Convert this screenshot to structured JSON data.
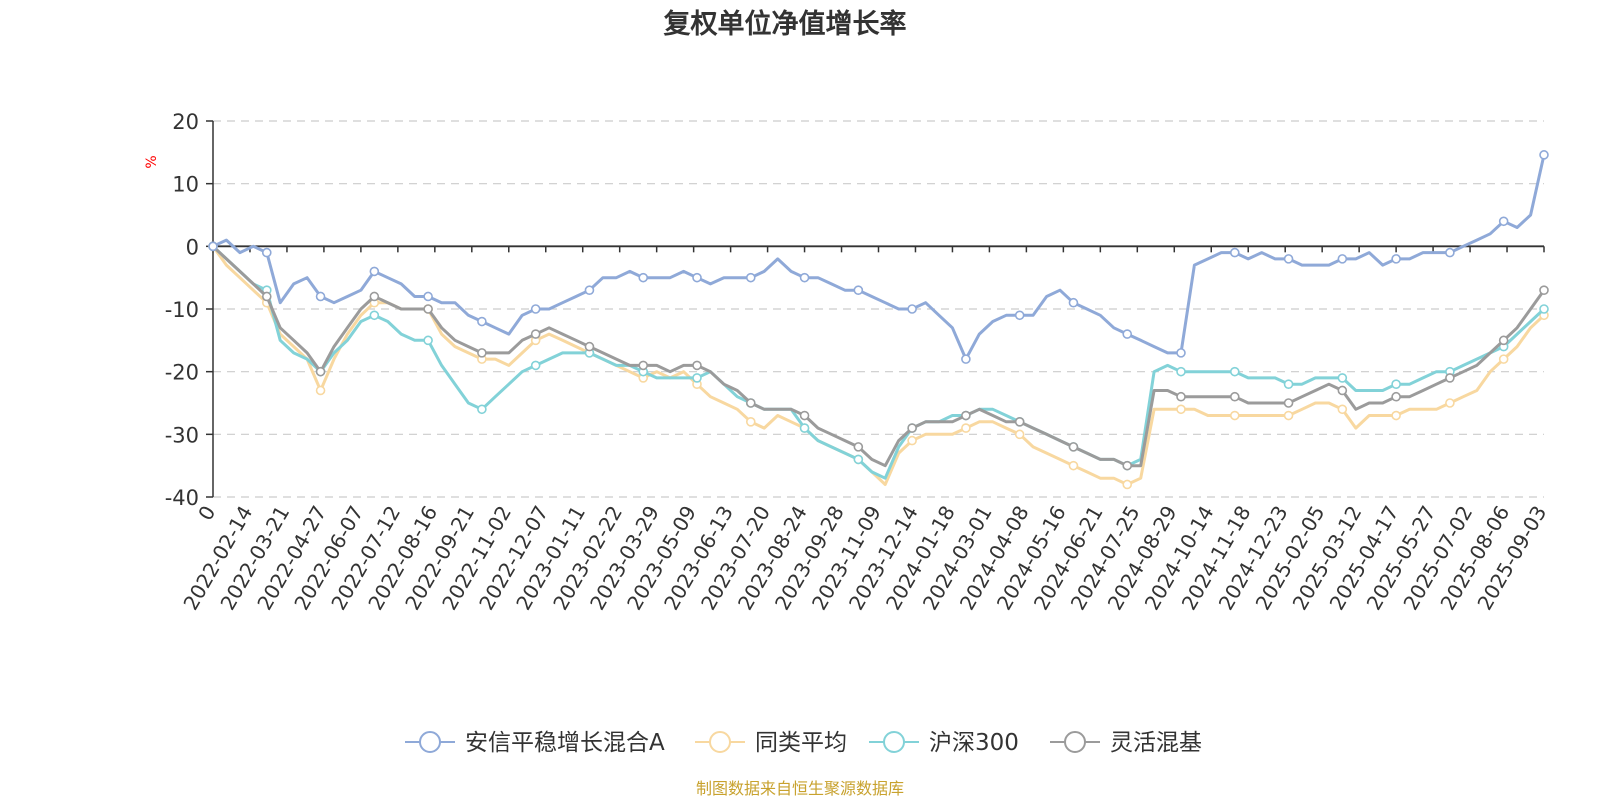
{
  "chart_data": {
    "type": "line",
    "title": "复权单位净值增长率",
    "ylabel": "%",
    "source": "制图数据来自恒生聚源数据库",
    "x_ticks": [
      "0",
      "2022-02-14",
      "2022-03-21",
      "2022-04-27",
      "2022-06-07",
      "2022-07-12",
      "2022-08-16",
      "2022-09-21",
      "2022-11-02",
      "2022-12-07",
      "2023-01-11",
      "2023-02-22",
      "2023-03-29",
      "2023-05-09",
      "2023-06-13",
      "2023-07-20",
      "2023-08-24",
      "2023-09-28",
      "2023-11-09",
      "2023-12-14",
      "2024-01-18",
      "2024-03-01",
      "2024-04-08",
      "2024-05-16",
      "2024-06-21",
      "2024-07-25",
      "2024-08-29",
      "2024-10-14",
      "2024-11-18",
      "2024-12-23",
      "2025-02-05",
      "2025-03-12",
      "2025-04-17",
      "2025-05-27",
      "2025-07-02",
      "2025-08-06",
      "2025-09-03"
    ],
    "ylim": [
      -40,
      20
    ],
    "y_ticks": [
      -40,
      -30,
      -20,
      -10,
      0,
      10,
      20
    ],
    "grid": true,
    "legend_position": "bottom",
    "series": [
      {
        "name": "安信平稳增长混合A",
        "color": "#8fa9d8",
        "values": [
          0,
          1,
          -1,
          0,
          -1,
          -9,
          -6,
          -5,
          -8,
          -9,
          -8,
          -7,
          -4,
          -5,
          -6,
          -8,
          -8,
          -9,
          -9,
          -11,
          -12,
          -13,
          -14,
          -11,
          -10,
          -10,
          -9,
          -8,
          -7,
          -5,
          -5,
          -4,
          -5,
          -5,
          -5,
          -4,
          -5,
          -6,
          -5,
          -5,
          -5,
          -4,
          -2,
          -4,
          -5,
          -5,
          -6,
          -7,
          -7,
          -8,
          -9,
          -10,
          -10,
          -9,
          -11,
          -13,
          -18,
          -14,
          -12,
          -11,
          -11,
          -11,
          -8,
          -7,
          -9,
          -10,
          -11,
          -13,
          -14,
          -15,
          -16,
          -17,
          -17,
          -3,
          -2,
          -1,
          -1,
          -2,
          -1,
          -2,
          -2,
          -3,
          -3,
          -3,
          -2,
          -2,
          -1,
          -3,
          -2,
          -2,
          -1,
          -1,
          -1,
          0,
          1,
          2,
          4,
          3,
          5,
          14.6
        ]
      },
      {
        "name": "同类平均",
        "color": "#f8d8a0",
        "values": [
          0,
          -3,
          -5,
          -7,
          -9,
          -14,
          -16,
          -18,
          -23,
          -18,
          -14,
          -11,
          -9,
          -9,
          -10,
          -10,
          -10,
          -14,
          -16,
          -17,
          -18,
          -18,
          -19,
          -17,
          -15,
          -14,
          -15,
          -16,
          -17,
          -18,
          -19,
          -20,
          -21,
          -20,
          -21,
          -20,
          -22,
          -24,
          -25,
          -26,
          -28,
          -29,
          -27,
          -28,
          -29,
          -31,
          -32,
          -33,
          -34,
          -36,
          -38,
          -33,
          -31,
          -30,
          -30,
          -30,
          -29,
          -28,
          -28,
          -29,
          -30,
          -32,
          -33,
          -34,
          -35,
          -36,
          -37,
          -37,
          -38,
          -37,
          -26,
          -26,
          -26,
          -26,
          -27,
          -27,
          -27,
          -27,
          -27,
          -27,
          -27,
          -26,
          -25,
          -25,
          -26,
          -29,
          -27,
          -27,
          -27,
          -26,
          -26,
          -26,
          -25,
          -24,
          -23,
          -20,
          -18,
          -16,
          -13,
          -11
        ]
      },
      {
        "name": "沪深300",
        "color": "#82d2d8",
        "values": [
          0,
          -2,
          -4,
          -6,
          -7,
          -15,
          -17,
          -18,
          -20,
          -17,
          -15,
          -12,
          -11,
          -12,
          -14,
          -15,
          -15,
          -19,
          -22,
          -25,
          -26,
          -24,
          -22,
          -20,
          -19,
          -18,
          -17,
          -17,
          -17,
          -18,
          -19,
          -19,
          -20,
          -21,
          -21,
          -21,
          -21,
          -20,
          -22,
          -24,
          -25,
          -26,
          -26,
          -26,
          -29,
          -31,
          -32,
          -33,
          -34,
          -36,
          -37,
          -32,
          -29,
          -28,
          -28,
          -27,
          -27,
          -26,
          -26,
          -27,
          -28,
          -29,
          -30,
          -31,
          -32,
          -33,
          -34,
          -34,
          -35,
          -34,
          -20,
          -19,
          -20,
          -20,
          -20,
          -20,
          -20,
          -21,
          -21,
          -21,
          -22,
          -22,
          -21,
          -21,
          -21,
          -23,
          -23,
          -23,
          -22,
          -22,
          -21,
          -20,
          -20,
          -19,
          -18,
          -17,
          -16,
          -14,
          -12,
          -10
        ]
      },
      {
        "name": "灵活混基",
        "color": "#9b9b9b",
        "values": [
          0,
          -2,
          -4,
          -6,
          -8,
          -13,
          -15,
          -17,
          -20,
          -16,
          -13,
          -10,
          -8,
          -9,
          -10,
          -10,
          -10,
          -13,
          -15,
          -16,
          -17,
          -17,
          -17,
          -15,
          -14,
          -13,
          -14,
          -15,
          -16,
          -17,
          -18,
          -19,
          -19,
          -19,
          -20,
          -19,
          -19,
          -20,
          -22,
          -23,
          -25,
          -26,
          -26,
          -26,
          -27,
          -29,
          -30,
          -31,
          -32,
          -34,
          -35,
          -31,
          -29,
          -28,
          -28,
          -28,
          -27,
          -26,
          -27,
          -28,
          -28,
          -29,
          -30,
          -31,
          -32,
          -33,
          -34,
          -34,
          -35,
          -35,
          -23,
          -23,
          -24,
          -24,
          -24,
          -24,
          -24,
          -25,
          -25,
          -25,
          -25,
          -24,
          -23,
          -22,
          -23,
          -26,
          -25,
          -25,
          -24,
          -24,
          -23,
          -22,
          -21,
          -20,
          -19,
          -17,
          -15,
          -13,
          -10,
          -7
        ]
      }
    ]
  }
}
